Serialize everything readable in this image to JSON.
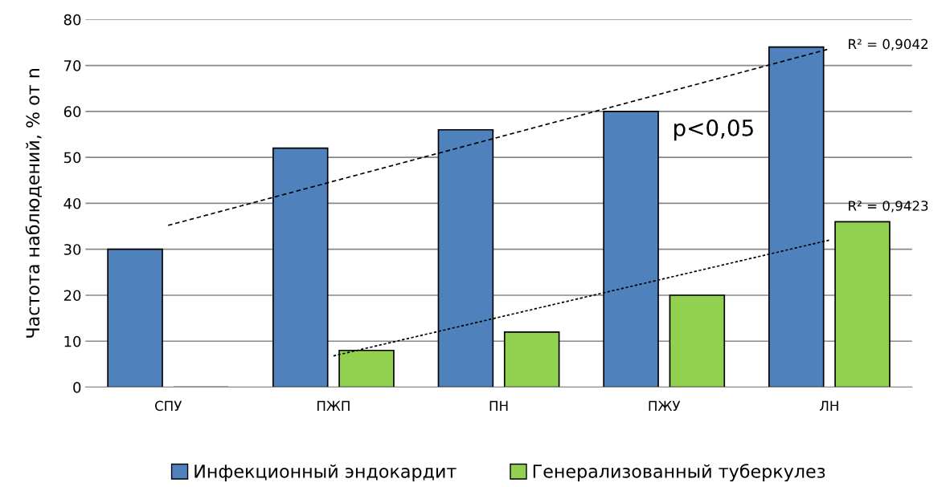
{
  "chart_data": {
    "type": "bar",
    "ylabel": "Частота наблюдений, % от n",
    "categories": [
      "СПУ",
      "ПЖП",
      "ПН",
      "ПЖУ",
      "ЛН"
    ],
    "series": [
      {
        "name": "Инфекционный эндокардит",
        "color": "#4f81bd",
        "values": [
          30,
          52,
          56,
          60,
          74
        ]
      },
      {
        "name": "Генерализованный туберкулез",
        "color": "#92d050",
        "values": [
          null,
          8,
          12,
          20,
          36
        ]
      },
      {
        "type": "line",
        "color": "#000000",
        "line_style": "dashed",
        "values": [
          35.2,
          44.8,
          54.4,
          64,
          73.6
        ]
      },
      {
        "type": "line",
        "color": "#000000",
        "line_style": "dotted",
        "values": [
          null,
          6.8,
          15.2,
          23.6,
          32
        ]
      }
    ],
    "annotations": [
      "R² = 0,9042",
      "R² = 0,9423",
      "p<0,05"
    ],
    "ylim": [
      0,
      80
    ],
    "yticks": [
      0,
      10,
      20,
      30,
      40,
      50,
      60,
      70,
      80
    ],
    "grid": "y",
    "legend": "bottom"
  }
}
